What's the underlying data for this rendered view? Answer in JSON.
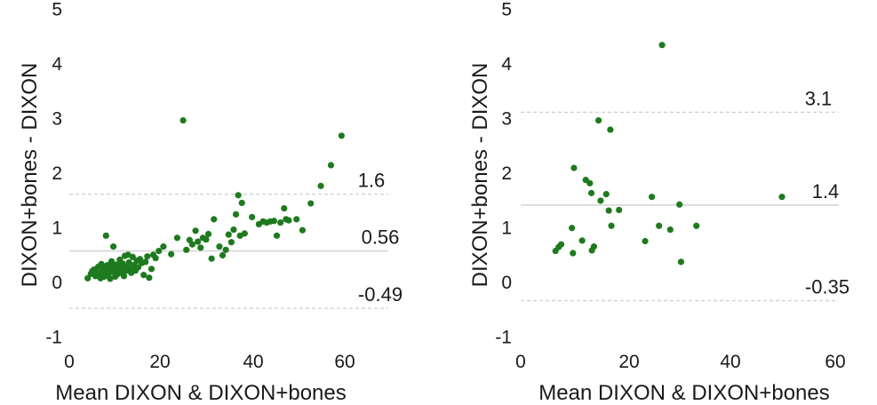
{
  "chart_data": [
    {
      "type": "scatter",
      "title": "",
      "xlabel": "Mean DIXON & DIXON+bones",
      "ylabel": "DIXON+bones - DIXON",
      "xlim": [
        0,
        70
      ],
      "ylim": [
        -1,
        5
      ],
      "xticks": [
        "0",
        "20",
        "40",
        "60"
      ],
      "yticks": [
        "-1",
        "0",
        "1",
        "2",
        "3",
        "4",
        "5"
      ],
      "grid": false,
      "reference_lines": [
        {
          "value": 1.6,
          "label": "1.6",
          "style": "dashed"
        },
        {
          "value": 0.56,
          "label": "0.56",
          "style": "solid"
        },
        {
          "value": -0.49,
          "label": "-0.49",
          "style": "dashed"
        }
      ],
      "point_color": "#1e7a1e",
      "points": [
        [
          4.0,
          0.06
        ],
        [
          4.7,
          0.14
        ],
        [
          5.0,
          0.19
        ],
        [
          5.4,
          0.22
        ],
        [
          5.7,
          0.1
        ],
        [
          6.0,
          0.17
        ],
        [
          6.3,
          0.27
        ],
        [
          6.5,
          0.12
        ],
        [
          6.8,
          0.06
        ],
        [
          7.0,
          0.32
        ],
        [
          7.2,
          0.22
        ],
        [
          7.4,
          0.16
        ],
        [
          7.6,
          0.09
        ],
        [
          7.8,
          0.26
        ],
        [
          8.0,
          0.84
        ],
        [
          8.1,
          0.19
        ],
        [
          8.3,
          0.3
        ],
        [
          8.5,
          0.12
        ],
        [
          8.7,
          0.23
        ],
        [
          8.9,
          0.05
        ],
        [
          9.1,
          0.28
        ],
        [
          9.2,
          0.37
        ],
        [
          9.4,
          0.18
        ],
        [
          9.6,
          0.64
        ],
        [
          9.8,
          0.24
        ],
        [
          10.0,
          0.09
        ],
        [
          10.2,
          0.31
        ],
        [
          10.4,
          0.2
        ],
        [
          10.6,
          0.14
        ],
        [
          10.8,
          0.29
        ],
        [
          11.0,
          0.4
        ],
        [
          11.2,
          0.24
        ],
        [
          11.4,
          0.17
        ],
        [
          11.6,
          0.33
        ],
        [
          11.9,
          0.1
        ],
        [
          12.1,
          0.47
        ],
        [
          12.3,
          0.26
        ],
        [
          12.5,
          0.2
        ],
        [
          12.8,
          0.49
        ],
        [
          13.0,
          0.35
        ],
        [
          13.2,
          0.24
        ],
        [
          13.5,
          0.16
        ],
        [
          13.8,
          0.45
        ],
        [
          14.1,
          0.3
        ],
        [
          14.4,
          0.2
        ],
        [
          14.7,
          0.38
        ],
        [
          15.0,
          0.26
        ],
        [
          15.4,
          0.41
        ],
        [
          15.8,
          0.34
        ],
        [
          16.2,
          0.12
        ],
        [
          16.6,
          0.36
        ],
        [
          17.0,
          0.46
        ],
        [
          17.4,
          0.07
        ],
        [
          17.9,
          0.23
        ],
        [
          18.3,
          0.49
        ],
        [
          18.8,
          0.43
        ],
        [
          19.5,
          0.56
        ],
        [
          20.5,
          0.64
        ],
        [
          22.2,
          0.5
        ],
        [
          23.5,
          0.8
        ],
        [
          24.8,
          2.95
        ],
        [
          25.5,
          0.58
        ],
        [
          26.2,
          0.76
        ],
        [
          26.8,
          0.68
        ],
        [
          27.5,
          0.93
        ],
        [
          28.0,
          0.73
        ],
        [
          28.6,
          0.62
        ],
        [
          29.1,
          0.8
        ],
        [
          29.8,
          0.77
        ],
        [
          30.3,
          0.87
        ],
        [
          31.0,
          0.42
        ],
        [
          31.5,
          1.14
        ],
        [
          32.7,
          0.64
        ],
        [
          33.4,
          0.48
        ],
        [
          34.1,
          0.58
        ],
        [
          34.7,
          0.86
        ],
        [
          35.3,
          0.72
        ],
        [
          35.8,
          0.95
        ],
        [
          36.3,
          1.23
        ],
        [
          36.8,
          1.58
        ],
        [
          37.2,
          0.84
        ],
        [
          37.6,
          1.44
        ],
        [
          38.2,
          0.88
        ],
        [
          39.8,
          1.18
        ],
        [
          41.3,
          1.05
        ],
        [
          42.2,
          1.1
        ],
        [
          43.0,
          1.08
        ],
        [
          43.8,
          1.1
        ],
        [
          44.6,
          1.11
        ],
        [
          45.2,
          0.84
        ],
        [
          46.0,
          1.08
        ],
        [
          46.8,
          1.34
        ],
        [
          47.2,
          1.14
        ],
        [
          47.8,
          1.12
        ],
        [
          49.5,
          1.14
        ],
        [
          50.8,
          0.94
        ],
        [
          52.6,
          1.43
        ],
        [
          54.8,
          1.75
        ],
        [
          57.0,
          2.13
        ],
        [
          59.3,
          2.67
        ]
      ]
    },
    {
      "type": "scatter",
      "title": "",
      "xlabel": "Mean DIXON & DIXON+bones",
      "ylabel": "DIXON+bones - DIXON",
      "xlim": [
        0,
        62
      ],
      "ylim": [
        -1,
        5
      ],
      "xticks": [
        "0",
        "20",
        "40",
        "60"
      ],
      "yticks": [
        "-1",
        "0",
        "1",
        "2",
        "3",
        "4",
        "5"
      ],
      "grid": false,
      "reference_lines": [
        {
          "value": 3.1,
          "label": "3.1",
          "style": "dashed"
        },
        {
          "value": 1.4,
          "label": "1.4",
          "style": "solid"
        },
        {
          "value": -0.35,
          "label": "-0.35",
          "style": "dashed"
        }
      ],
      "point_color": "#1e7a1e",
      "points": [
        [
          6.8,
          0.56
        ],
        [
          7.4,
          0.63
        ],
        [
          7.9,
          0.68
        ],
        [
          10.0,
          0.98
        ],
        [
          10.2,
          0.52
        ],
        [
          10.4,
          2.08
        ],
        [
          12.0,
          0.75
        ],
        [
          12.7,
          1.86
        ],
        [
          13.5,
          1.8
        ],
        [
          13.8,
          1.62
        ],
        [
          13.9,
          0.57
        ],
        [
          14.3,
          0.64
        ],
        [
          15.2,
          2.95
        ],
        [
          15.6,
          1.48
        ],
        [
          16.7,
          1.6
        ],
        [
          17.2,
          1.3
        ],
        [
          17.5,
          2.78
        ],
        [
          17.7,
          1.02
        ],
        [
          19.2,
          1.31
        ],
        [
          24.3,
          0.74
        ],
        [
          25.6,
          1.55
        ],
        [
          27.0,
          1.02
        ],
        [
          27.6,
          4.33
        ],
        [
          29.2,
          0.95
        ],
        [
          31.0,
          1.41
        ],
        [
          31.3,
          0.36
        ],
        [
          34.3,
          1.02
        ],
        [
          51.0,
          1.55
        ]
      ]
    }
  ]
}
